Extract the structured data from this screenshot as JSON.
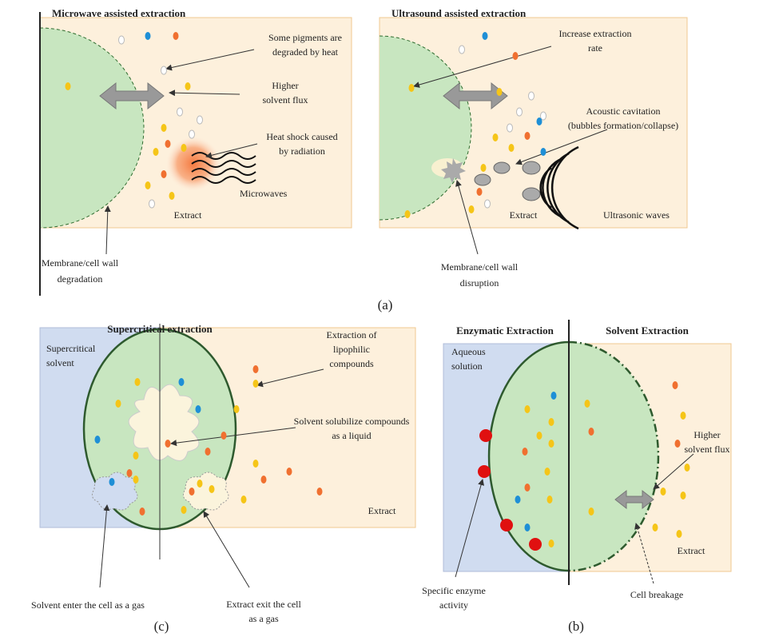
{
  "microwave": {
    "title": "Microwave assisted extraction",
    "pigments": [
      "Some pigments are",
      "degraded by heat"
    ],
    "flux": [
      "Higher",
      "solvent flux"
    ],
    "heat": [
      "Heat shock caused",
      "by radiation"
    ],
    "waves": "Microwaves",
    "extract": "Extract",
    "membrane": [
      "Membrane/cell wall",
      "degradation"
    ]
  },
  "ultrasound": {
    "title": "Ultrasound assisted extraction",
    "rate": [
      "Increase extraction",
      "rate"
    ],
    "cavitation": [
      "Acoustic cavitation",
      "(bubbles formation/collapse)"
    ],
    "waves": "Ultrasonic waves",
    "extract": "Extract",
    "membrane": [
      "Membrane/cell wall",
      "disruption"
    ]
  },
  "caption_a": "(a)",
  "supercritical": {
    "title": "Supercritical extraction",
    "solvent": [
      "Supercritical",
      "solvent"
    ],
    "lipophilic": [
      "Extraction of",
      "lipophilic",
      "compounds"
    ],
    "solubilize": [
      "Solvent solubilize compounds",
      "as a liquid"
    ],
    "extract": "Extract",
    "enter": "Solvent enter the cell as a gas",
    "exit": [
      "Extract exit the cell",
      "as a gas"
    ],
    "caption": "(c)"
  },
  "enzymatic_solvent": {
    "title_left": "Enzymatic Extraction",
    "title_right": "Solvent Extraction",
    "aqueous": [
      "Aqueous",
      "solution"
    ],
    "flux": [
      "Higher",
      "solvent flux"
    ],
    "extract": "Extract",
    "enzyme": [
      "Specific enzyme",
      "activity"
    ],
    "breakage": "Cell breakage",
    "caption": "(b)"
  }
}
